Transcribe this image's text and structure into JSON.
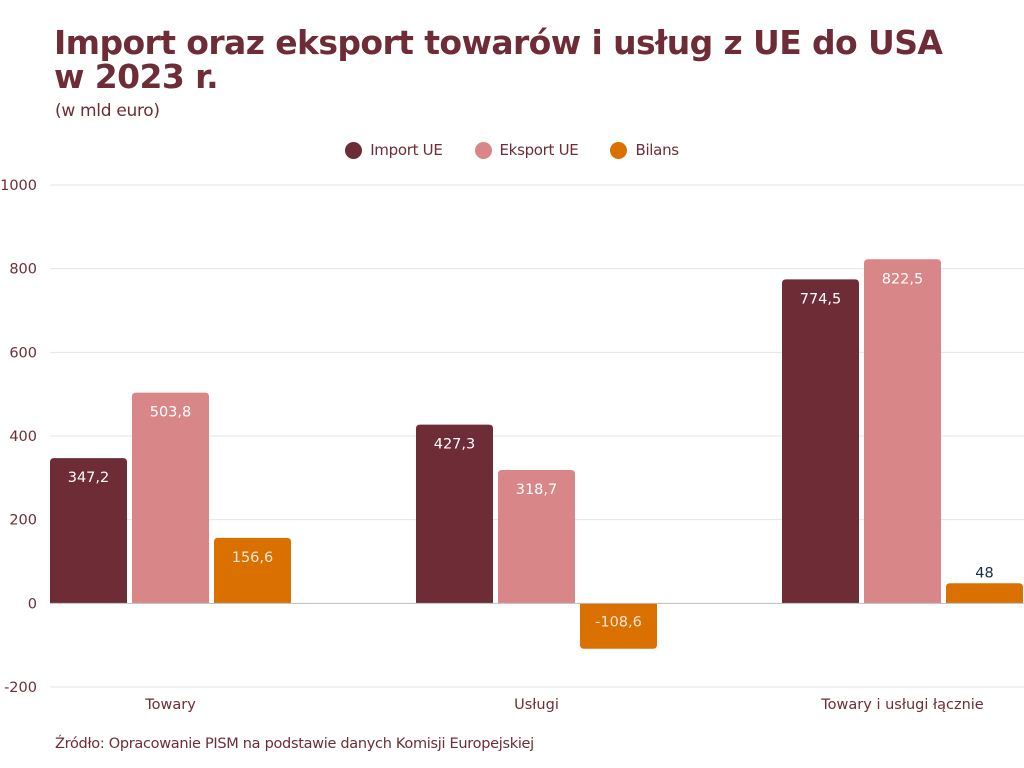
{
  "header": {
    "title": "Import oraz eksport towarów i usług z UE do USA w 2023 r.",
    "subtitle": "(w mld euro)"
  },
  "footer": {
    "source": "Źródło: Opracowanie PISM na podstawie danych Komisji Europejskiej"
  },
  "chart_data": {
    "type": "bar",
    "title": "Import oraz eksport towarów i usług z UE do USA w 2023 r.",
    "subtitle": "(w mld euro)",
    "xlabel": "",
    "ylabel": "",
    "categories": [
      "Towary",
      "Usługi",
      "Towary i usługi łącznie"
    ],
    "series": [
      {
        "name": "Import UE",
        "color": "#6e2c36",
        "values": [
          347.2,
          427.3,
          774.5
        ],
        "labels": [
          "347,2",
          "427,3",
          "774,5"
        ]
      },
      {
        "name": "Eksport UE",
        "color": "#d98688",
        "values": [
          503.8,
          318.7,
          822.5
        ],
        "labels": [
          "503,8",
          "318,7",
          "822,5"
        ]
      },
      {
        "name": "Bilans",
        "color": "#d97000",
        "values": [
          156.6,
          -108.6,
          48
        ],
        "labels": [
          "156,6",
          "-108,6",
          "48"
        ]
      }
    ],
    "ylim": [
      -200,
      1000
    ],
    "yticks": [
      1000,
      800,
      600,
      400,
      200,
      0,
      -200
    ],
    "ytick_labels": [
      "1000",
      "800",
      "600",
      "400",
      "200",
      "0",
      "-200"
    ],
    "grid": true,
    "legend_position": "top-center",
    "colors": {
      "text": "#6e2c36",
      "grid": "#e6e6e6",
      "outside_label": "#1a2a4a"
    }
  }
}
